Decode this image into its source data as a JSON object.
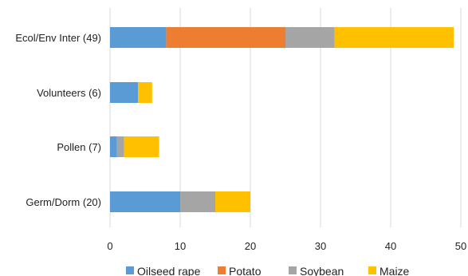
{
  "chart_data": {
    "type": "bar",
    "orientation": "horizontal",
    "stacked": true,
    "categories": [
      "Ecol/Env Inter (49)",
      "Volunteers (6)",
      "Pollen (7)",
      "Germ/Dorm (20)"
    ],
    "series": [
      {
        "name": "Oilseed rape",
        "color": "#5B9BD5",
        "values": [
          8,
          4,
          1,
          10
        ]
      },
      {
        "name": "Potato",
        "color": "#ED7D31",
        "values": [
          17,
          0,
          0,
          0
        ]
      },
      {
        "name": "Soybean",
        "color": "#A5A5A5",
        "values": [
          7,
          0,
          1,
          5
        ]
      },
      {
        "name": "Maize",
        "color": "#FFC000",
        "values": [
          17,
          2,
          5,
          5
        ]
      }
    ],
    "x_ticks": [
      "0",
      "10",
      "20",
      "30",
      "40",
      "50"
    ],
    "xlim": [
      0,
      50
    ],
    "grid": "vertical",
    "legend_position": "bottom"
  }
}
